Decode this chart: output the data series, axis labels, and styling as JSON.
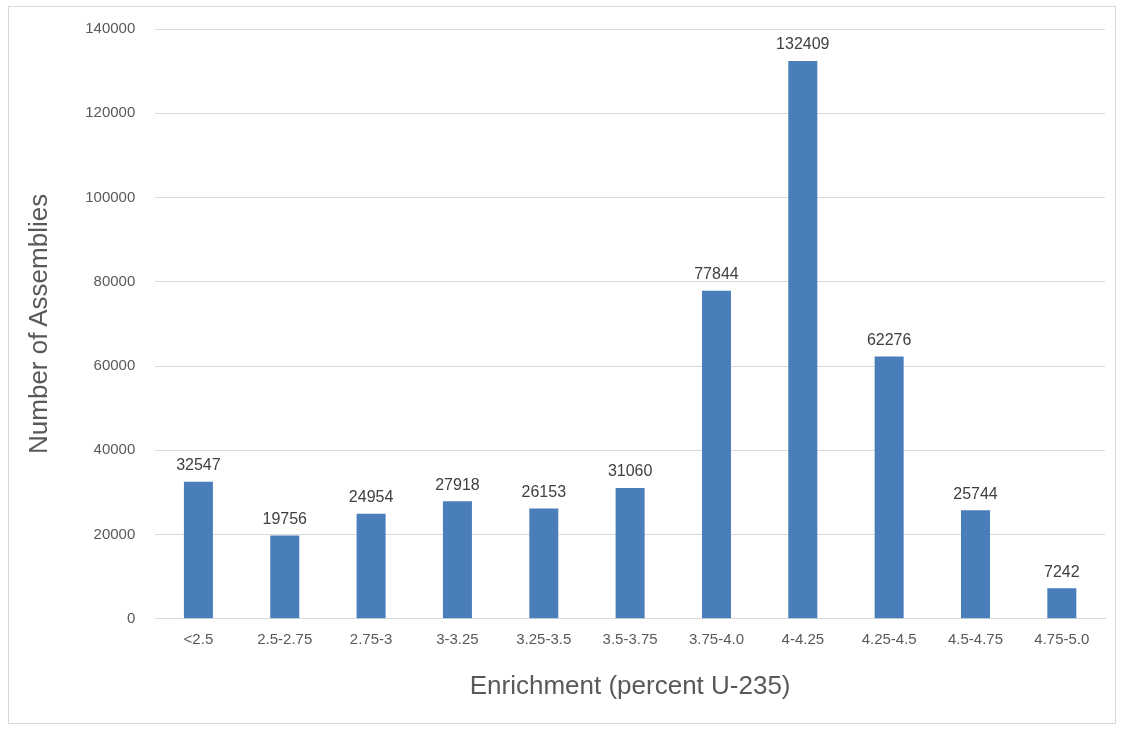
{
  "chart_data": {
    "type": "bar",
    "xlabel": "Enrichment (percent U-235)",
    "ylabel": "Number of Assemblies",
    "categories": [
      "<2.5",
      "2.5-2.75",
      "2.75-3",
      "3-3.25",
      "3.25-3.5",
      "3.5-3.75",
      "3.75-4.0",
      "4-4.25",
      "4.25-4.5",
      "4.5-4.75",
      "4.75-5.0"
    ],
    "values": [
      32547,
      19756,
      24954,
      27918,
      26153,
      31060,
      77844,
      132409,
      62276,
      25744,
      7242
    ],
    "color": "#4a7ebb",
    "ylim": [
      0,
      140000
    ],
    "yticks": [
      0,
      20000,
      40000,
      60000,
      80000,
      100000,
      120000,
      140000
    ],
    "grid": "y",
    "data_labels": true,
    "legend": false
  }
}
